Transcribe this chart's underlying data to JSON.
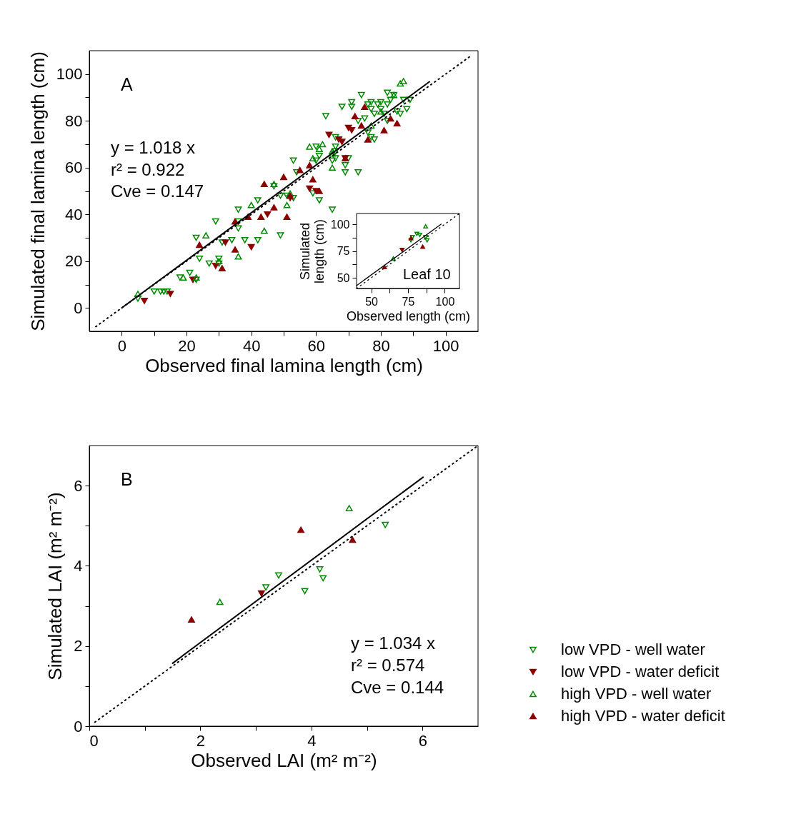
{
  "chart_data": [
    {
      "type": "scatter",
      "xlabel": "Observed final lamina length (cm)",
      "ylabel": "Simulated final lamina length (cm)",
      "xlim": [
        -10,
        110
      ],
      "ylim": [
        -10,
        110
      ],
      "xticks": [
        0,
        {
          "value": 10,
          "label": null
        },
        20,
        {
          "value": 30,
          "label": null
        },
        40,
        {
          "value": 50,
          "label": null
        },
        60,
        {
          "value": 70,
          "label": null
        },
        80,
        {
          "value": 90,
          "label": null
        },
        100
      ],
      "yticks": [
        0,
        {
          "value": 10,
          "label": null
        },
        20,
        {
          "value": 30,
          "label": null
        },
        40,
        {
          "value": 50,
          "label": null
        },
        60,
        {
          "value": 70,
          "label": null
        },
        80,
        {
          "value": 90,
          "label": null
        },
        100
      ],
      "annotations": [
        "A",
        "y = 1.018 x",
        "r² = 0.922",
        "Cve = 0.147"
      ],
      "series": [
        {
          "color": "#008800",
          "marker": "triangle-down-open",
          "x": [
            5,
            10,
            12,
            13,
            14,
            18,
            21,
            23,
            23,
            24,
            27,
            30,
            30,
            29,
            31,
            34,
            36,
            36,
            36,
            38,
            42,
            42,
            47,
            49,
            49,
            51,
            53,
            53,
            54,
            59,
            61,
            65,
            60,
            61,
            63,
            66,
            66,
            66,
            69,
            69,
            70,
            68,
            71,
            71,
            73,
            73,
            74,
            75,
            76,
            76,
            77,
            77,
            78,
            79,
            80,
            80,
            81,
            82,
            77,
            78,
            82,
            83,
            82,
            84,
            85,
            86,
            87,
            88,
            89,
            60,
            65,
            66
          ],
          "values": [
            4,
            7,
            7,
            7,
            7,
            13,
            15,
            12,
            30,
            21,
            19,
            21,
            19,
            37,
            28,
            29,
            34,
            37,
            42,
            29,
            46,
            29,
            52,
            48,
            31,
            48,
            47,
            63,
            58,
            49,
            46,
            42,
            69,
            65,
            82,
            73,
            69,
            64,
            61,
            58,
            64,
            86,
            86,
            88,
            80,
            58,
            91,
            81,
            75,
            87,
            88,
            85,
            83,
            87,
            88,
            85,
            83,
            80,
            73,
            72,
            92,
            89,
            87,
            91,
            84,
            83,
            89,
            85,
            89,
            63,
            63,
            67
          ]
        },
        {
          "color": "#8b0000",
          "marker": "triangle-down",
          "x": [
            7,
            15,
            22,
            29,
            32,
            40,
            45,
            64,
            70,
            71,
            67,
            68,
            58,
            60,
            69,
            52
          ],
          "values": [
            3,
            6,
            12,
            18,
            28,
            26,
            40,
            74,
            77,
            76,
            72,
            71,
            51,
            50,
            64,
            47
          ]
        },
        {
          "color": "#008800",
          "marker": "triangle-up-open",
          "x": [
            5,
            19,
            23,
            26,
            30,
            36,
            40,
            44,
            47,
            51,
            52,
            58,
            62,
            61,
            65,
            65,
            65,
            86,
            87,
            84,
            77,
            80,
            59
          ],
          "values": [
            6,
            13,
            13,
            31,
            20,
            22,
            44,
            33,
            53,
            44,
            49,
            69,
            70,
            68,
            60,
            66,
            67,
            96,
            97,
            91,
            78,
            84,
            64
          ]
        },
        {
          "color": "#8b0000",
          "marker": "triangle-up",
          "x": [
            24,
            31,
            35,
            35,
            39,
            43,
            44,
            47,
            50,
            51,
            55,
            58,
            59,
            61,
            52,
            72,
            74,
            75,
            76,
            81,
            83,
            85,
            69
          ],
          "values": [
            27,
            17,
            25,
            37,
            39,
            39,
            53,
            43,
            56,
            39,
            59,
            61,
            55,
            50,
            48,
            82,
            78,
            86,
            72,
            76,
            81,
            79,
            64
          ]
        },
        {
          "type": "line",
          "color": "#000000",
          "line_style": "solid",
          "x": [
            0,
            95
          ],
          "values": [
            0,
            96.7
          ]
        },
        {
          "type": "line",
          "color": "#000000",
          "line_style": "dotted",
          "x": [
            -8,
            108
          ],
          "values": [
            -8,
            108
          ]
        }
      ]
    },
    {
      "type": "scatter",
      "xlabel": "Observed length (cm)",
      "ylabel": "Simulated length (cm)",
      "xlim": [
        40,
        110
      ],
      "ylim": [
        40,
        110
      ],
      "xticks": [
        50,
        {
          "value": 62.5,
          "label": null
        },
        75,
        {
          "value": 87.5,
          "label": null
        },
        100
      ],
      "yticks": [
        50,
        {
          "value": 62.5,
          "label": null
        },
        75,
        {
          "value": 87.5,
          "label": null
        },
        100
      ],
      "annotations": [
        "Leaf 10"
      ],
      "series": [
        {
          "color": "#008800",
          "marker": "triangle-down-open",
          "x": [
            77,
            78,
            81,
            83,
            87,
            88
          ],
          "values": [
            85,
            88,
            91,
            90,
            88,
            85
          ]
        },
        {
          "color": "#8b0000",
          "marker": "triangle-down",
          "x": [
            71
          ],
          "values": [
            76
          ]
        },
        {
          "color": "#008800",
          "marker": "triangle-up-open",
          "x": [
            65,
            87
          ],
          "values": [
            68,
            98
          ]
        },
        {
          "color": "#8b0000",
          "marker": "triangle-up",
          "x": [
            59,
            85,
            77
          ],
          "values": [
            60,
            79,
            87
          ]
        },
        {
          "type": "line",
          "color": "#000000",
          "line_style": "solid",
          "x": [
            40,
            97.5
          ],
          "values": [
            42.7,
            100
          ]
        },
        {
          "type": "line",
          "color": "#000000",
          "line_style": "dotted",
          "x": [
            40,
            110
          ],
          "values": [
            40,
            110
          ]
        }
      ]
    },
    {
      "type": "scatter",
      "xlabel": "Observed LAI (m² m⁻²)",
      "ylabel": "Simulated LAI (m² m⁻²)",
      "xlim": [
        0,
        7
      ],
      "ylim": [
        0,
        7
      ],
      "xticks": [
        0,
        {
          "value": 1,
          "label": null
        },
        2,
        {
          "value": 3,
          "label": null
        },
        4,
        {
          "value": 5,
          "label": null
        },
        6
      ],
      "yticks": [
        0,
        {
          "value": 1,
          "label": null
        },
        2,
        {
          "value": 3,
          "label": null
        },
        4,
        {
          "value": 5,
          "label": null
        },
        6
      ],
      "annotations": [
        "B",
        "y = 1.034 x",
        "r² = 0.574",
        "Cve = 0.144"
      ],
      "legend": "right",
      "series": [
        {
          "name": "low VPD - well water",
          "color": "#008800",
          "marker": "triangle-down-open",
          "x": [
            3.18,
            3.41,
            3.88,
            4.15,
            4.21,
            5.33
          ],
          "values": [
            3.46,
            3.76,
            3.37,
            3.91,
            3.69,
            5.02
          ]
        },
        {
          "name": "low VPD - water deficit",
          "color": "#8b0000",
          "marker": "triangle-down",
          "x": [
            3.1
          ],
          "values": [
            3.31
          ]
        },
        {
          "name": "high VPD - well water",
          "color": "#008800",
          "marker": "triangle-up-open",
          "x": [
            2.35,
            4.68
          ],
          "values": [
            3.1,
            5.44
          ]
        },
        {
          "name": "high VPD - water deficit",
          "color": "#8b0000",
          "marker": "triangle-up",
          "x": [
            1.84,
            3.81,
            4.74
          ],
          "values": [
            2.66,
            4.9,
            4.65
          ]
        },
        {
          "type": "line",
          "color": "#000000",
          "line_style": "solid",
          "x": [
            1.5,
            6.01
          ],
          "values": [
            1.57,
            6.21
          ]
        },
        {
          "type": "line",
          "color": "#000000",
          "line_style": "dotted",
          "x": [
            0.1,
            7
          ],
          "values": [
            0.1,
            7
          ]
        }
      ]
    }
  ]
}
